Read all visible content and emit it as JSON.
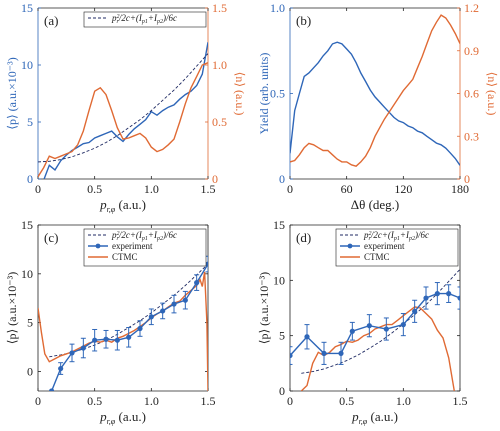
{
  "colors": {
    "blue": "#2e66b8",
    "orange": "#e06a34",
    "fit": "#1f2a63",
    "axis": "#222222"
  },
  "chart_data": [
    {
      "id": "a",
      "panel_label": "(a)",
      "type": "line",
      "xlabel_main": "p",
      "xlabel_sub": "r,φ",
      "xlabel_unit": " (a.u.)",
      "ylabel_left": "⟨p_y⟩ (a.u.×10⁻³)",
      "ylabel_right": "⟨n⟩ (a.u.)",
      "xlim": [
        0,
        1.5
      ],
      "ylim_left": [
        0,
        15
      ],
      "ylim_right": [
        0,
        1.5
      ],
      "xticks": [
        0,
        0.5,
        1,
        1.5
      ],
      "xtick_labels": [
        "0",
        "0.5",
        "1.0",
        "1.5"
      ],
      "yticks_left": [
        0,
        5,
        10,
        15
      ],
      "yticks_right": [
        0,
        0.5,
        1,
        1.5
      ],
      "ytick_labels_right": [
        "0",
        "0.5",
        "1.0",
        "1.5"
      ],
      "legend": [
        "p²ᵣ/2c+(Ip1+Ip2)/6c"
      ],
      "series": [
        {
          "style": "blue",
          "axis": "left",
          "x": [
            0,
            0.05,
            0.1,
            0.15,
            0.2,
            0.25,
            0.3,
            0.35,
            0.4,
            0.45,
            0.5,
            0.55,
            0.6,
            0.65,
            0.7,
            0.75,
            0.8,
            0.85,
            0.9,
            0.95,
            1.0,
            1.05,
            1.1,
            1.15,
            1.2,
            1.25,
            1.3,
            1.35,
            1.4,
            1.45,
            1.5
          ],
          "y": [
            -0.3,
            -0.1,
            1.2,
            0.8,
            1.6,
            2.1,
            2.5,
            2.8,
            3.1,
            3.2,
            3.6,
            3.8,
            4.0,
            4.2,
            3.7,
            3.3,
            3.9,
            4.4,
            4.8,
            5.2,
            5.9,
            5.6,
            6.0,
            6.3,
            6.5,
            7.0,
            7.4,
            7.7,
            8.2,
            9.2,
            12.0
          ]
        },
        {
          "style": "orange",
          "axis": "right",
          "x": [
            0,
            0.05,
            0.1,
            0.15,
            0.2,
            0.25,
            0.3,
            0.35,
            0.4,
            0.45,
            0.5,
            0.55,
            0.6,
            0.65,
            0.7,
            0.75,
            0.8,
            0.85,
            0.9,
            0.95,
            1.0,
            1.05,
            1.1,
            1.15,
            1.2,
            1.25,
            1.3,
            1.35,
            1.4,
            1.45,
            1.5
          ],
          "y": [
            0.02,
            0.1,
            0.2,
            0.18,
            0.2,
            0.22,
            0.24,
            0.3,
            0.42,
            0.6,
            0.77,
            0.8,
            0.74,
            0.6,
            0.45,
            0.35,
            0.36,
            0.38,
            0.4,
            0.36,
            0.28,
            0.24,
            0.26,
            0.3,
            0.35,
            0.5,
            0.66,
            0.8,
            0.9,
            1.0,
            1.02
          ]
        },
        {
          "style": "dashed",
          "axis": "left",
          "x": [
            0,
            0.1,
            0.2,
            0.3,
            0.4,
            0.5,
            0.6,
            0.7,
            0.8,
            0.9,
            1.0,
            1.1,
            1.2,
            1.3,
            1.4,
            1.5
          ],
          "y": [
            1.5,
            1.55,
            1.7,
            1.95,
            2.3,
            2.7,
            3.2,
            3.8,
            4.5,
            5.2,
            6.0,
            6.9,
            7.8,
            8.8,
            9.9,
            11.0
          ]
        }
      ]
    },
    {
      "id": "b",
      "panel_label": "(b)",
      "type": "line",
      "xlabel_main": "Δθ (deg.)",
      "xlabel_sub": "",
      "xlabel_unit": "",
      "ylabel_left": "Yield (arb. units)",
      "ylabel_right": "⟨n⟩ (a.u.)",
      "xlim": [
        0,
        180
      ],
      "ylim_left": [
        0,
        1.0
      ],
      "ylim_right": [
        0,
        1.2
      ],
      "xticks": [
        0,
        60,
        120,
        180
      ],
      "xtick_labels": [
        "0",
        "60",
        "120",
        "180"
      ],
      "yticks_left": [
        0,
        0.5,
        1.0
      ],
      "ytick_labels_left": [
        "0",
        "0.5",
        "1.0"
      ],
      "yticks_right": [
        0,
        0.3,
        0.6,
        0.9,
        1.2
      ],
      "ytick_labels_right": [
        "0",
        "0.3",
        "0.6",
        "0.9",
        "1.2"
      ],
      "series": [
        {
          "style": "blue",
          "axis": "left",
          "x": [
            0,
            5,
            10,
            15,
            20,
            25,
            30,
            35,
            40,
            45,
            50,
            55,
            60,
            65,
            70,
            75,
            80,
            85,
            90,
            95,
            100,
            105,
            110,
            115,
            120,
            125,
            130,
            135,
            140,
            145,
            150,
            155,
            160,
            165,
            170,
            175,
            180
          ],
          "y": [
            0.15,
            0.4,
            0.5,
            0.6,
            0.62,
            0.65,
            0.68,
            0.72,
            0.75,
            0.79,
            0.8,
            0.79,
            0.76,
            0.73,
            0.68,
            0.62,
            0.57,
            0.52,
            0.48,
            0.45,
            0.42,
            0.39,
            0.36,
            0.34,
            0.33,
            0.31,
            0.3,
            0.28,
            0.27,
            0.25,
            0.23,
            0.21,
            0.2,
            0.18,
            0.15,
            0.12,
            0.08
          ]
        },
        {
          "style": "orange",
          "axis": "right",
          "x": [
            0,
            5,
            10,
            15,
            20,
            25,
            30,
            35,
            40,
            45,
            50,
            55,
            60,
            65,
            70,
            75,
            80,
            85,
            90,
            95,
            100,
            105,
            110,
            115,
            120,
            125,
            130,
            135,
            140,
            145,
            150,
            155,
            160,
            165,
            170,
            175,
            180
          ],
          "y": [
            0.12,
            0.13,
            0.17,
            0.22,
            0.25,
            0.24,
            0.22,
            0.2,
            0.2,
            0.17,
            0.14,
            0.12,
            0.12,
            0.1,
            0.09,
            0.12,
            0.16,
            0.22,
            0.3,
            0.36,
            0.42,
            0.47,
            0.52,
            0.57,
            0.62,
            0.66,
            0.7,
            0.78,
            0.86,
            0.95,
            1.04,
            1.1,
            1.15,
            1.13,
            1.08,
            1.02,
            0.95
          ]
        }
      ]
    },
    {
      "id": "c",
      "panel_label": "(c)",
      "type": "line",
      "xlabel_main": "p",
      "xlabel_sub": "r,φ",
      "xlabel_unit": " (a.u.)",
      "ylabel_left": "⟨p_y⟩ (a.u.×10⁻³)",
      "xlim": [
        0,
        1.5
      ],
      "ylim_left": [
        -2,
        15
      ],
      "xticks": [
        0,
        0.5,
        1,
        1.5
      ],
      "xtick_labels": [
        "0",
        "0.5",
        "1.0",
        "1.5"
      ],
      "yticks_left": [
        0,
        5,
        10,
        15
      ],
      "legend": [
        "p²ᵣ/2c+(Ip1+Ip2)/6c",
        "experiment",
        "CTMC"
      ],
      "series": [
        {
          "style": "dashed",
          "axis": "left",
          "x": [
            0.1,
            0.2,
            0.3,
            0.4,
            0.5,
            0.6,
            0.7,
            0.8,
            0.9,
            1.0,
            1.1,
            1.2,
            1.3,
            1.4,
            1.5
          ],
          "y": [
            1.5,
            1.7,
            1.95,
            2.3,
            2.7,
            3.2,
            3.8,
            4.5,
            5.2,
            6.0,
            6.9,
            7.8,
            8.8,
            9.9,
            11.0
          ]
        },
        {
          "style": "orange",
          "axis": "left",
          "x": [
            0,
            0.03,
            0.06,
            0.1,
            0.15,
            0.2,
            0.25,
            0.3,
            0.35,
            0.4,
            0.45,
            0.5,
            0.55,
            0.6,
            0.65,
            0.7,
            0.75,
            0.8,
            0.85,
            0.9,
            0.95,
            1.0,
            1.05,
            1.1,
            1.15,
            1.2,
            1.25,
            1.3,
            1.35,
            1.4,
            1.43,
            1.45,
            1.47,
            1.49,
            1.5
          ],
          "y": [
            6.5,
            4.0,
            1.8,
            1.0,
            1.3,
            1.6,
            1.8,
            2.0,
            2.3,
            2.6,
            2.9,
            3.1,
            3.0,
            3.2,
            3.0,
            3.4,
            3.6,
            3.9,
            4.2,
            4.6,
            5.0,
            5.5,
            5.9,
            6.2,
            6.6,
            7.0,
            7.2,
            7.8,
            8.3,
            8.8,
            9.4,
            8.7,
            10.2,
            5.0,
            -2.0
          ]
        },
        {
          "style": "exp",
          "axis": "left",
          "x": [
            0.12,
            0.2,
            0.3,
            0.4,
            0.5,
            0.6,
            0.7,
            0.8,
            0.9,
            1.0,
            1.1,
            1.2,
            1.3,
            1.4,
            1.5
          ],
          "y": [
            -2.0,
            0.3,
            1.9,
            2.4,
            3.2,
            3.3,
            3.2,
            3.5,
            4.4,
            5.6,
            6.2,
            6.9,
            7.3,
            9.1,
            11.0
          ],
          "err": [
            0,
            0.6,
            0.9,
            1.0,
            1.1,
            0.9,
            1.0,
            1.0,
            0.8,
            0.8,
            0.8,
            0.9,
            0.9,
            0.8,
            0.8
          ]
        }
      ]
    },
    {
      "id": "d",
      "panel_label": "(d)",
      "type": "line",
      "xlabel_main": "p",
      "xlabel_sub": "r,φ",
      "xlabel_unit": " (a.u.)",
      "ylabel_left": "⟨p_y⟩ (a.u.×10⁻³)",
      "xlim": [
        0,
        1.5
      ],
      "ylim_left": [
        0,
        15
      ],
      "xticks": [
        0,
        0.5,
        1,
        1.5
      ],
      "xtick_labels": [
        "0",
        "0.5",
        "1.0",
        "1.5"
      ],
      "yticks_left": [
        0,
        5,
        10,
        15
      ],
      "legend": [
        "p²ᵣ/2c+(Ip1+Ip2)/6c",
        "experiment",
        "CTMC"
      ],
      "series": [
        {
          "style": "dashed",
          "axis": "left",
          "x": [
            0.1,
            0.2,
            0.3,
            0.4,
            0.5,
            0.6,
            0.7,
            0.8,
            0.9,
            1.0,
            1.1,
            1.2,
            1.3,
            1.4,
            1.5
          ],
          "y": [
            1.6,
            1.75,
            2.0,
            2.35,
            2.75,
            3.25,
            3.85,
            4.5,
            5.25,
            6.05,
            6.9,
            7.8,
            8.8,
            9.9,
            11.0
          ]
        },
        {
          "style": "orange",
          "axis": "left",
          "x": [
            0.1,
            0.15,
            0.2,
            0.25,
            0.3,
            0.35,
            0.4,
            0.45,
            0.5,
            0.55,
            0.6,
            0.65,
            0.7,
            0.75,
            0.8,
            0.85,
            0.9,
            0.95,
            1.0,
            1.05,
            1.1,
            1.15,
            1.2,
            1.25,
            1.3,
            1.35,
            1.4,
            1.45
          ],
          "y": [
            0.0,
            0.5,
            2.5,
            3.5,
            3.2,
            3.5,
            4.0,
            4.2,
            4.5,
            4.4,
            4.6,
            5.0,
            5.2,
            5.6,
            5.8,
            6.0,
            6.0,
            6.4,
            6.8,
            7.2,
            7.6,
            7.5,
            7.0,
            6.5,
            5.5,
            4.8,
            3.0,
            0.0
          ]
        },
        {
          "style": "exp",
          "axis": "left",
          "x": [
            0,
            0.15,
            0.3,
            0.45,
            0.55,
            0.7,
            0.85,
            1.0,
            1.1,
            1.2,
            1.3,
            1.4,
            1.5
          ],
          "y": [
            3.2,
            4.9,
            3.4,
            3.4,
            5.4,
            5.9,
            5.6,
            6.0,
            7.2,
            8.4,
            8.8,
            8.8,
            8.4
          ],
          "err": [
            0.8,
            1.1,
            1.0,
            1.0,
            0.8,
            1.0,
            1.0,
            1.0,
            1.0,
            1.0,
            1.0,
            0.8,
            1.0
          ]
        }
      ]
    }
  ]
}
